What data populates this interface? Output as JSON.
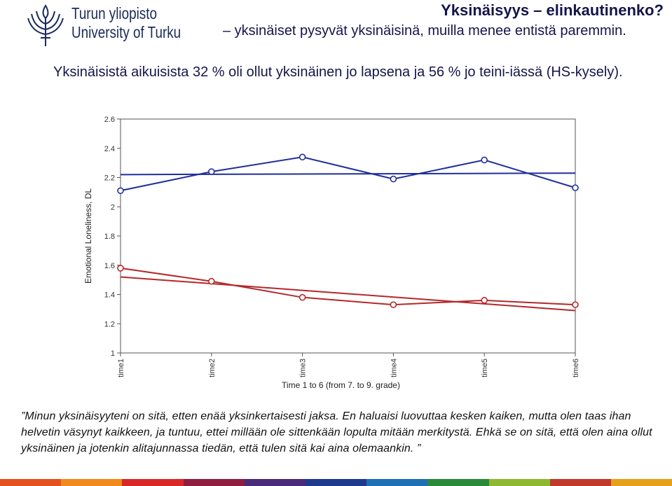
{
  "logo": {
    "line1": "Turun yliopisto",
    "line2": "University of Turku",
    "icon": "torch-emblem-icon"
  },
  "slide": {
    "title": "Yksinäisyys – elinkautinenko?",
    "subtitle": "– yksinäiset pysyvät yksinäisinä, muilla menee entistä paremmin.",
    "intro": "Yksinäisistä aikuisista 32 % oli ollut yksinäinen jo lapsena ja 56 % jo teini-iässä (HS-kysely).",
    "quote": "”Minun yksinäisyyteni on sitä, etten enää yksinkertaisesti jaksa. En haluaisi luovuttaa kesken kaiken, mutta olen taas ihan helvetin väsynyt kaikkeen, ja tuntuu, ettei millään ole sittenkään lopulta mitään merkitystä. Ehkä se on sitä, että olen aina ollut yksinäinen ja jotenkin alitajunnassa tiedän, että tulen sitä kai aina olemaankin. ”"
  },
  "chart_data": {
    "type": "line",
    "categories": [
      "time1",
      "time2",
      "time3",
      "time4",
      "time5",
      "time6"
    ],
    "xlabel": "Time 1 to 6 (from 7. to 9. grade)",
    "ylabel": "Emotional Loneliness, DL",
    "ylim": [
      1,
      2.6
    ],
    "yticks": [
      1,
      1.2,
      1.4,
      1.6,
      1.8,
      2,
      2.2,
      2.4,
      2.6
    ],
    "grid": false,
    "series": [
      {
        "color": "#1f2f9a",
        "values": [
          2.11,
          2.24,
          2.34,
          2.19,
          2.32,
          2.13
        ],
        "trend": [
          2.22,
          2.23
        ]
      },
      {
        "color": "#b4282a",
        "values": [
          1.58,
          1.49,
          1.38,
          1.33,
          1.36,
          1.33
        ],
        "trend": [
          1.52,
          1.29
        ]
      }
    ]
  },
  "colors": {
    "title": "#15154a",
    "footer_stripes": [
      "#e5501f",
      "#f08a1c",
      "#d92727",
      "#8e1d3f",
      "#4a2a7a",
      "#1e3a8c",
      "#1f6fb5",
      "#2a8a3a",
      "#8fb832",
      "#c0392b",
      "#e6a11a"
    ]
  }
}
